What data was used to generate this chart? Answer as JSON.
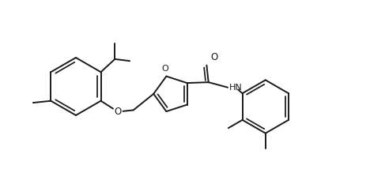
{
  "background_color": "#ffffff",
  "line_color": "#1a1a1a",
  "line_width": 1.4,
  "fig_width": 4.68,
  "fig_height": 2.33,
  "dpi": 100,
  "xlim": [
    0,
    10.0
  ],
  "ylim": [
    0,
    4.8
  ]
}
